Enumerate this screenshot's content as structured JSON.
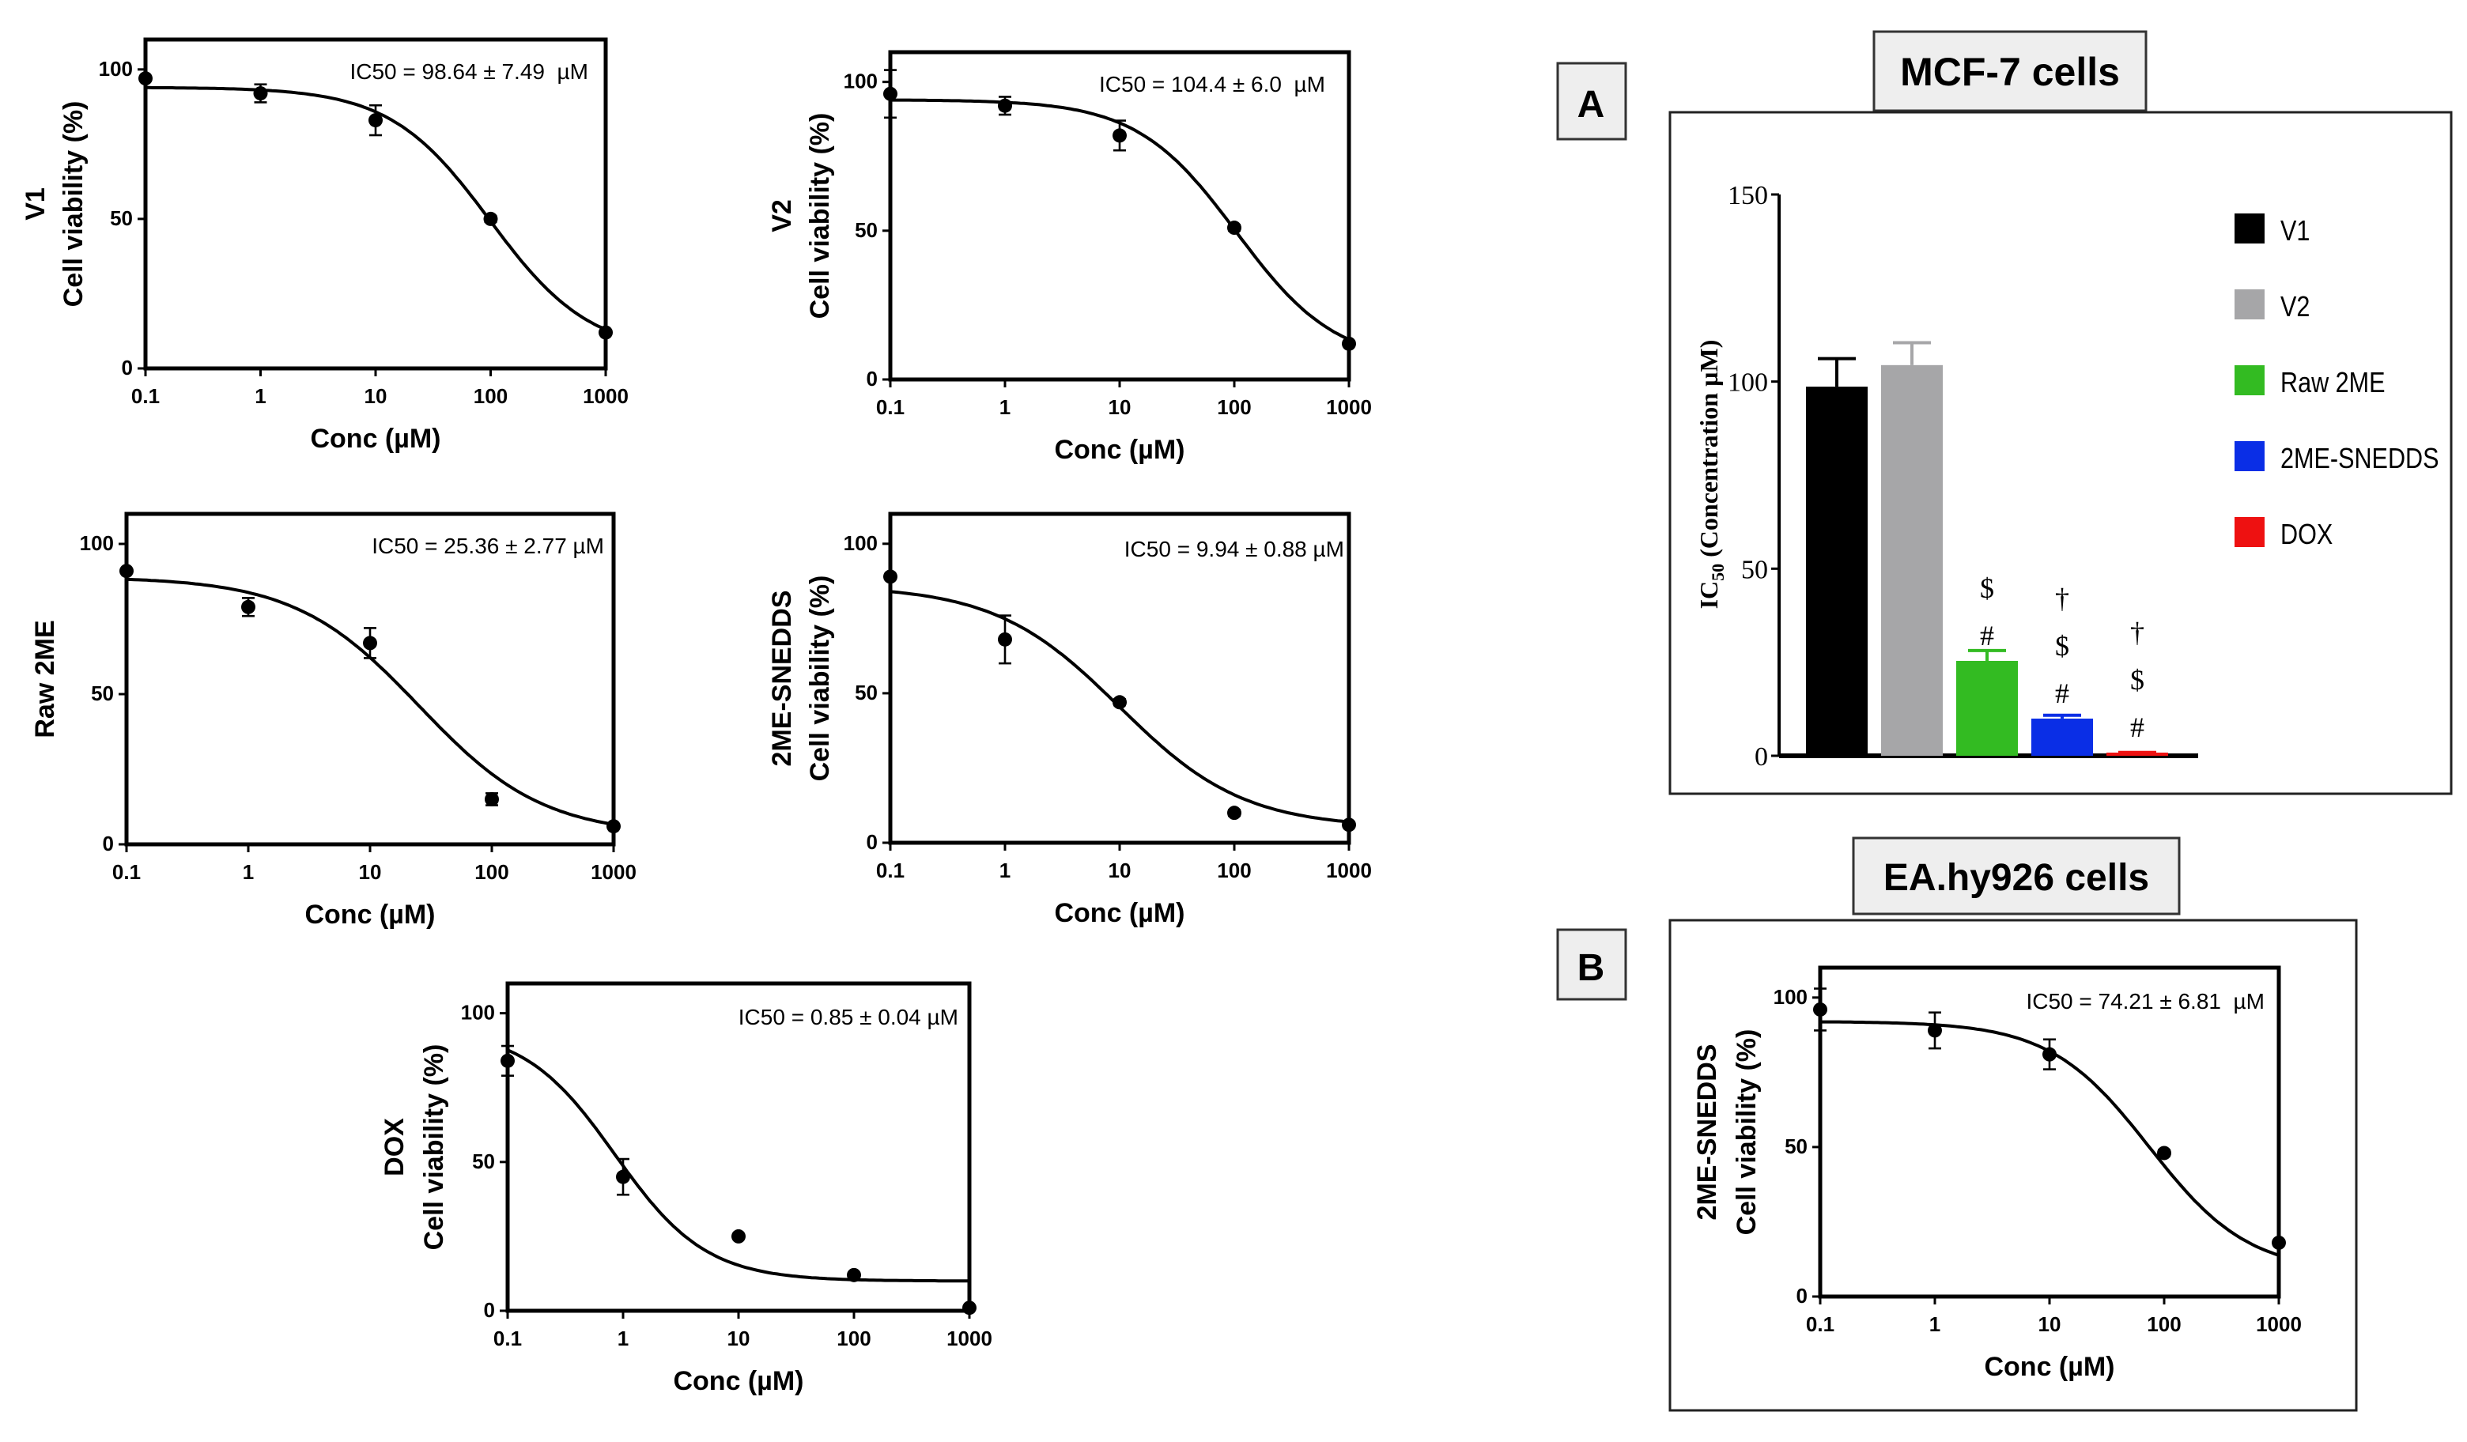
{
  "chart_data": [
    {
      "id": "v1",
      "type": "scatter",
      "title_label": "V1",
      "ylabel": "Cell viability (%)",
      "xlabel": "Conc (µM)",
      "xscale": "log",
      "xlim": [
        0.1,
        1000
      ],
      "ylim": [
        0,
        110
      ],
      "xticks": [
        "0.1",
        "1",
        "10",
        "100",
        "1000"
      ],
      "yticks": [
        "0",
        "50",
        "100"
      ],
      "annotation": "IC50 = 98.64 ± 7.49  µM",
      "ic_text": {
        "pre": "IC",
        "sub": "50",
        "post": " = 98.64 ± 7.49  µM"
      },
      "x": [
        0.1,
        1,
        10,
        100,
        1000
      ],
      "y": [
        97,
        92,
        83,
        50,
        12
      ],
      "err": [
        0,
        3,
        5,
        1,
        0
      ],
      "fit": {
        "top": 94,
        "bottom": 5,
        "ic50": 98.64,
        "hill": 1
      }
    },
    {
      "id": "v2",
      "type": "scatter",
      "title_label": "V2",
      "ylabel": "Cell viability (%)",
      "xlabel": "Conc (µM)",
      "xscale": "log",
      "xlim": [
        0.1,
        1000
      ],
      "ylim": [
        0,
        110
      ],
      "xticks": [
        "0.1",
        "1",
        "10",
        "100",
        "1000"
      ],
      "yticks": [
        "0",
        "50",
        "100"
      ],
      "annotation": "IC50 = 104.4 ± 6.0  µM",
      "ic_text": {
        "pre": "IC",
        "sub": "50",
        "post": " = 104.4 ± 6.0  µM"
      },
      "x": [
        0.1,
        1,
        10,
        100,
        1000
      ],
      "y": [
        96,
        92,
        82,
        51,
        12
      ],
      "err": [
        8,
        3,
        5,
        1,
        0
      ],
      "fit": {
        "top": 94,
        "bottom": 5,
        "ic50": 104.4,
        "hill": 1
      }
    },
    {
      "id": "raw2me",
      "type": "scatter",
      "title_label": "Raw 2ME",
      "ylabel": "",
      "xlabel": "Conc (µM)",
      "xscale": "log",
      "xlim": [
        0.1,
        1000
      ],
      "ylim": [
        0,
        110
      ],
      "xticks": [
        "0.1",
        "1",
        "10",
        "100",
        "1000"
      ],
      "yticks": [
        "0",
        "50",
        "100"
      ],
      "annotation": "IC50 = 25.36 ± 2.77 µM",
      "ic_text": {
        "pre": "IC",
        "sub": "50",
        "post": " = 25.36 ± 2.77 µM"
      },
      "x": [
        0.1,
        1,
        10,
        100,
        1000
      ],
      "y": [
        91,
        79,
        67,
        15,
        6
      ],
      "err": [
        0,
        3,
        5,
        2,
        0
      ],
      "fit": {
        "top": 89,
        "bottom": 3,
        "ic50": 25.36,
        "hill": 0.85
      }
    },
    {
      "id": "sneddes",
      "type": "scatter",
      "title_label": "2ME-SNEDDS",
      "ylabel": "Cell viability (%)",
      "xlabel": "Conc (µM)",
      "xscale": "log",
      "xlim": [
        0.1,
        1000
      ],
      "ylim": [
        0,
        110
      ],
      "xticks": [
        "0.1",
        "1",
        "10",
        "100",
        "1000"
      ],
      "yticks": [
        "0",
        "50",
        "100"
      ],
      "annotation": "IC50 = 9.94 ± 0.88 µM",
      "ic_text": {
        "pre": "IC",
        "sub": "50",
        "post": " = 9.94 ± 0.88 µM"
      },
      "x": [
        0.1,
        1,
        10,
        100,
        1000
      ],
      "y": [
        89,
        68,
        47,
        10,
        6
      ],
      "err": [
        0,
        8,
        1,
        1,
        0
      ],
      "fit": {
        "top": 86,
        "bottom": 5,
        "ic50": 9.94,
        "hill": 0.8
      }
    },
    {
      "id": "dox",
      "type": "scatter",
      "title_label": "DOX",
      "ylabel": "Cell viability (%)",
      "xlabel": "Conc (µM)",
      "xscale": "log",
      "xlim": [
        0.1,
        1000
      ],
      "ylim": [
        0,
        110
      ],
      "xticks": [
        "0.1",
        "1",
        "10",
        "100",
        "1000"
      ],
      "yticks": [
        "0",
        "50",
        "100"
      ],
      "annotation": "IC50 = 0.85 ± 0.04 µM",
      "ic_text": {
        "pre": "IC",
        "sub": "50",
        "post": " = 0.85 ± 0.04 µM"
      },
      "x": [
        0.1,
        1,
        10,
        100,
        1000
      ],
      "y": [
        84,
        45,
        25,
        12,
        1
      ],
      "err": [
        5,
        6,
        0,
        0,
        0
      ],
      "fit": {
        "top": 95,
        "bottom": 10,
        "ic50": 0.85,
        "hill": 1.1
      }
    },
    {
      "id": "eahy",
      "type": "scatter",
      "title_label": "2ME-SNEDDS",
      "ylabel": "Cell viability (%)",
      "xlabel": "Conc (µM)",
      "xscale": "log",
      "xlim": [
        0.1,
        1000
      ],
      "ylim": [
        0,
        110
      ],
      "xticks": [
        "0.1",
        "1",
        "10",
        "100",
        "1000"
      ],
      "yticks": [
        "0",
        "50",
        "100"
      ],
      "annotation": "IC50 = 74.21 ± 6.81  µM",
      "ic_text": {
        "pre": "IC",
        "sub": "50",
        "post": " = 74.21 ± 6.81  µM"
      },
      "x": [
        0.1,
        1,
        10,
        100,
        1000
      ],
      "y": [
        96,
        89,
        81,
        48,
        18
      ],
      "err": [
        7,
        6,
        5,
        1,
        0
      ],
      "fit": {
        "top": 92,
        "bottom": 8,
        "ic50": 74.21,
        "hill": 1
      }
    },
    {
      "id": "bars",
      "type": "bar",
      "ylabel": "IC50 (Concentration µM)",
      "ylabel_parts": {
        "pre": "IC",
        "sub": "50",
        "post": " (Concentration µM)"
      },
      "ylim": [
        0,
        150
      ],
      "yticks": [
        "0",
        "50",
        "100",
        "150"
      ],
      "categories": [
        "V1",
        "V2",
        "Raw 2ME",
        "2ME-SNEDDS",
        "DOX"
      ],
      "values": [
        98.64,
        104.4,
        25.36,
        9.94,
        0.85
      ],
      "errors": [
        7.49,
        6.0,
        2.77,
        0.88,
        0.04
      ],
      "colors": [
        "#000000",
        "#a6a6a8",
        "#33bb22",
        "#0a2ee6",
        "#ee1111"
      ],
      "significance": [
        [],
        [],
        [
          "#",
          "$"
        ],
        [
          "#",
          "$",
          "†"
        ],
        [
          "#",
          "$",
          "†"
        ]
      ],
      "legend": "right"
    }
  ],
  "panels": {
    "a": {
      "letter": "A",
      "title": "MCF-7 cells"
    },
    "b": {
      "letter": "B",
      "title": "EA.hy926 cells"
    }
  }
}
